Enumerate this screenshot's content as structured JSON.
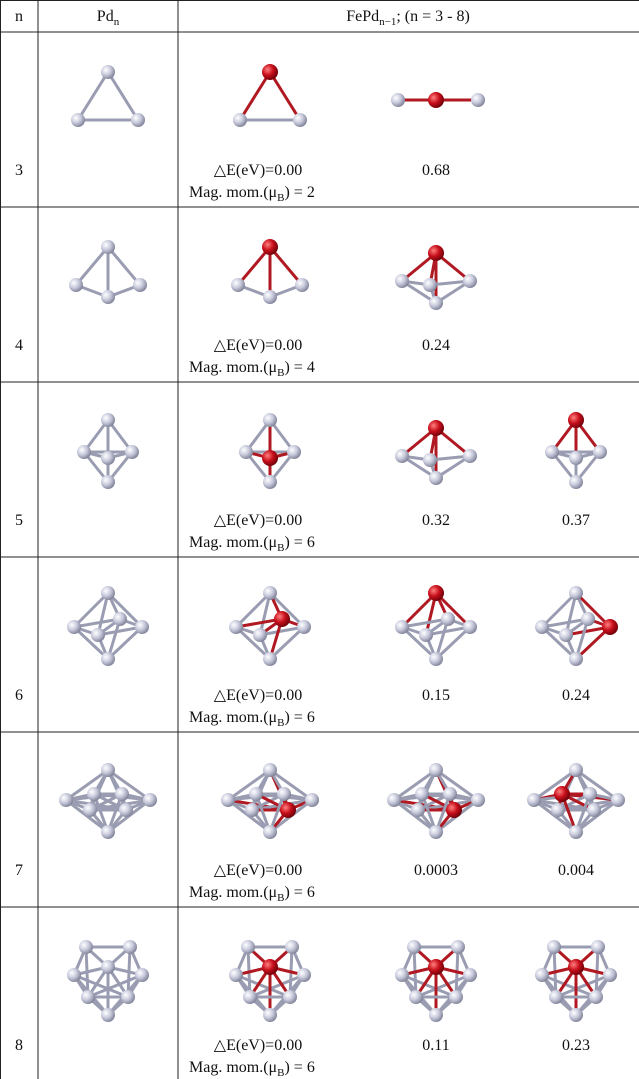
{
  "header": {
    "n": "n",
    "pd": [
      "Pd",
      "n"
    ],
    "fepd": [
      "FePd",
      "n−1",
      "; (n = 3 - 8)"
    ]
  },
  "rows": [
    {
      "n": "3",
      "energies": [
        "△E(eV)=0.00",
        "0.68"
      ],
      "mag": [
        "Mag. mom.(μ",
        "B",
        ") = 2"
      ]
    },
    {
      "n": "4",
      "energies": [
        "△E(eV)=0.00",
        "0.24"
      ],
      "mag": [
        "Mag. mom.(μ",
        "B",
        ") = 4"
      ]
    },
    {
      "n": "5",
      "energies": [
        "△E(eV)=0.00",
        "0.32",
        "0.37"
      ],
      "mag": [
        "Mag. mom.(μ",
        "B",
        ") = 6"
      ]
    },
    {
      "n": "6",
      "energies": [
        "△E(eV)=0.00",
        "0.15",
        "0.24"
      ],
      "mag": [
        "Mag. mom.(μ",
        "B",
        ") = 6"
      ]
    },
    {
      "n": "7",
      "energies": [
        "△E(eV)=0.00",
        "0.0003",
        "0.004"
      ],
      "mag": [
        "Mag. mom.(μ",
        "B",
        ") = 6"
      ]
    },
    {
      "n": "8",
      "energies": [
        "△E(eV)=0.00",
        "0.11",
        "0.23"
      ],
      "mag": [
        "Mag. mom.(μ",
        "B",
        ") = 6"
      ]
    }
  ]
}
